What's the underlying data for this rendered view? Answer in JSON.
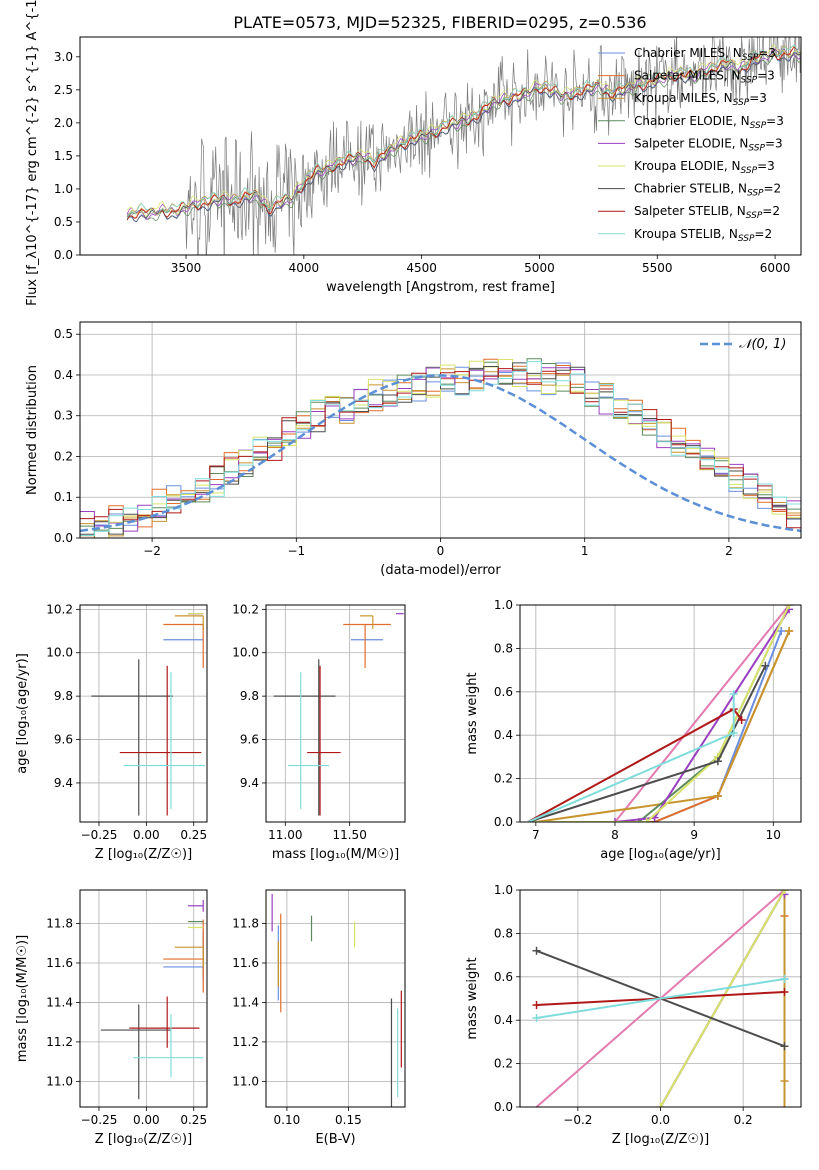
{
  "figure_title": "PLATE=0573, MJD=52325, FIBERID=0295, z=0.536",
  "colors": {
    "chabrier_miles": "#6a8fe0",
    "salpeter_miles": "#e06e2a",
    "kroupa_miles": "#c8942e",
    "chabrier_elodie": "#5c8a5c",
    "salpeter_elodie": "#9a3fc0",
    "kroupa_elodie": "#d8e36a",
    "chabrier_stelib": "#4d4d4d",
    "salpeter_stelib": "#b01818",
    "kroupa_stelib": "#7fdcdc",
    "data": "#7a7a7a",
    "gauss": "#5b8fd6",
    "pink": "#e37ab0",
    "grid": "#b0b0b0"
  },
  "chart_data": [
    {
      "id": "spectrum",
      "type": "line",
      "xlabel": "wavelength [Angstrom, rest frame]",
      "ylabel": "Flux [f_λ10^{-17} erg cm^{-2} s^{-1} A^{-1}]",
      "xlim": [
        3050,
        6110
      ],
      "ylim": [
        0,
        3.3
      ],
      "xticks": [
        3500,
        4000,
        4500,
        5000,
        5500,
        6000
      ],
      "yticks": [
        0.0,
        0.5,
        1.0,
        1.5,
        2.0,
        2.5,
        3.0
      ],
      "grid": false,
      "legend_position": "right",
      "legend": [
        {
          "text": "Chabrier MILES, N",
          "sub": "SSP",
          "tail": "=3",
          "color_key": "chabrier_miles"
        },
        {
          "text": "Salpeter MILES, N",
          "sub": "SSP",
          "tail": "=3",
          "color_key": "salpeter_miles"
        },
        {
          "text": "Kroupa MILES, N",
          "sub": "SSP",
          "tail": "=3",
          "color_key": "kroupa_miles"
        },
        {
          "text": "Chabrier ELODIE, N",
          "sub": "SSP",
          "tail": "=3",
          "color_key": "chabrier_elodie"
        },
        {
          "text": "Salpeter ELODIE, N",
          "sub": "SSP",
          "tail": "=3",
          "color_key": "salpeter_elodie"
        },
        {
          "text": "Kroupa ELODIE, N",
          "sub": "SSP",
          "tail": "=3",
          "color_key": "kroupa_elodie"
        },
        {
          "text": "Chabrier STELIB, N",
          "sub": "SSP",
          "tail": "=2",
          "color_key": "chabrier_stelib"
        },
        {
          "text": "Salpeter STELIB, N",
          "sub": "SSP",
          "tail": "=2",
          "color_key": "salpeter_stelib"
        },
        {
          "text": "Kroupa STELIB, N",
          "sub": "SSP",
          "tail": "=2",
          "color_key": "kroupa_stelib"
        }
      ],
      "model_x": [
        3250,
        3300,
        3350,
        3400,
        3450,
        3500,
        3550,
        3600,
        3650,
        3700,
        3750,
        3800,
        3850,
        3900,
        3950,
        4000,
        4050,
        4100,
        4150,
        4200,
        4250,
        4300,
        4350,
        4400,
        4450,
        4500,
        4550,
        4600,
        4650,
        4700,
        4750,
        4800,
        4850,
        4900,
        4950,
        5000,
        5050,
        5100,
        5150,
        5200,
        5250,
        5300,
        5350,
        5400,
        5450,
        5500,
        5550,
        5600,
        5650,
        5700,
        5750,
        5800,
        5850,
        5900,
        5950,
        6000
      ],
      "model_y": [
        0.6,
        0.65,
        0.62,
        0.68,
        0.65,
        0.72,
        0.78,
        0.8,
        0.85,
        0.82,
        0.88,
        0.9,
        0.7,
        0.8,
        0.85,
        1.1,
        1.25,
        1.3,
        1.4,
        1.45,
        1.5,
        1.4,
        1.55,
        1.65,
        1.75,
        1.8,
        1.85,
        1.95,
        2.0,
        2.05,
        2.15,
        2.3,
        2.35,
        2.4,
        2.45,
        2.55,
        2.5,
        2.4,
        2.45,
        2.5,
        2.55,
        2.45,
        2.5,
        2.55,
        2.6,
        2.65,
        2.7,
        2.75,
        2.7,
        2.8,
        2.85,
        2.9,
        2.8,
        2.95,
        3.0,
        3.05
      ],
      "data_note": "observed spectrum drawn as noisy line around model"
    },
    {
      "id": "residual_hist",
      "type": "line",
      "xlabel": "(data-model)/error",
      "ylabel": "Normed distribution",
      "xlim": [
        -2.5,
        2.5
      ],
      "ylim": [
        0,
        0.53
      ],
      "xticks": [
        -2,
        -1,
        0,
        1,
        2
      ],
      "yticks": [
        0.0,
        0.1,
        0.2,
        0.3,
        0.4,
        0.5
      ],
      "grid": true,
      "legend_position": "top-right",
      "legend": [
        {
          "text": "𝒩(0, 1)",
          "color_key": "gauss"
        }
      ],
      "bin_edges_step": 0.1,
      "bin_start": -2.5,
      "base_hist": [
        0.03,
        0.03,
        0.04,
        0.05,
        0.06,
        0.08,
        0.09,
        0.1,
        0.12,
        0.14,
        0.17,
        0.19,
        0.21,
        0.23,
        0.26,
        0.28,
        0.3,
        0.31,
        0.32,
        0.34,
        0.35,
        0.36,
        0.37,
        0.37,
        0.38,
        0.39,
        0.39,
        0.4,
        0.4,
        0.41,
        0.4,
        0.4,
        0.39,
        0.39,
        0.38,
        0.36,
        0.34,
        0.32,
        0.3,
        0.28,
        0.26,
        0.24,
        0.22,
        0.19,
        0.17,
        0.15,
        0.12,
        0.1,
        0.08,
        0.06
      ]
    }
  ],
  "panels": {
    "age_vs_Z": {
      "xlabel": "Z [log₁₀(Z/Z☉)]",
      "ylabel": "age  [log₁₀(age/yr)]",
      "xlim": [
        -0.35,
        0.32
      ],
      "ylim": [
        9.22,
        10.22
      ],
      "xticks": [
        -0.25,
        0.0,
        0.25
      ],
      "xtick_labels": [
        "−0.25",
        "0.00",
        "0.25"
      ],
      "yticks": [
        9.4,
        9.6,
        9.8,
        10.0,
        10.2
      ],
      "grid": true
    },
    "age_vs_mass": {
      "xlabel": "mass [log₁₀(M/M☉)]",
      "xlim": [
        10.85,
        11.93
      ],
      "ylim": [
        9.22,
        10.22
      ],
      "xticks": [
        11.0,
        11.5
      ],
      "yticks": [
        9.4,
        9.6,
        9.8,
        10.0,
        10.2
      ],
      "grid": true
    },
    "mw_vs_age": {
      "xlabel": "age  [log₁₀(age/yr)]",
      "ylabel": "mass weight",
      "xlim": [
        6.8,
        10.35
      ],
      "ylim": [
        0,
        1
      ],
      "xticks": [
        7,
        8,
        9,
        10
      ],
      "yticks": [
        0.0,
        0.2,
        0.4,
        0.6,
        0.8,
        1.0
      ],
      "grid": true
    },
    "mass_vs_Z": {
      "xlabel": "Z [log₁₀(Z/Z☉)]",
      "ylabel": "mass [log₁₀(M/M☉)]",
      "xlim": [
        -0.35,
        0.32
      ],
      "ylim": [
        10.87,
        11.97
      ],
      "xticks": [
        -0.25,
        0.0,
        0.25
      ],
      "xtick_labels": [
        "−0.25",
        "0.00",
        "0.25"
      ],
      "yticks": [
        11.0,
        11.2,
        11.4,
        11.6,
        11.8
      ],
      "grid": true
    },
    "mass_vs_ebv": {
      "xlabel": "E(B-V)",
      "xlim": [
        0.083,
        0.196
      ],
      "ylim": [
        10.87,
        11.97
      ],
      "xticks": [
        0.1,
        0.15
      ],
      "yticks": [
        11.0,
        11.2,
        11.4,
        11.6,
        11.8
      ],
      "grid": true
    },
    "mw_vs_Z": {
      "xlabel": "Z [log₁₀(Z/Z☉)]",
      "ylabel": "mass weight",
      "xlim": [
        -0.34,
        0.34
      ],
      "ylim": [
        0,
        1
      ],
      "xticks": [
        -0.2,
        0.0,
        0.2
      ],
      "xtick_labels": [
        "−0.2",
        "0.0",
        "0.2"
      ],
      "yticks": [
        0.0,
        0.2,
        0.4,
        0.6,
        0.8,
        1.0
      ],
      "grid": true
    }
  },
  "fits": [
    {
      "key": "chabrier_miles",
      "Z": [
        0.09,
        0.3
      ],
      "age": [
        10.06,
        10.06
      ],
      "ageErr": [
        0.0,
        0.0
      ],
      "mass": [
        11.58,
        11.58
      ],
      "massErr": [
        0.07,
        0.18
      ],
      "mass_mwZ": 11.58,
      "ebv": 0.093,
      "Zmax": 0.3,
      "age_mw": [
        [
          8.5,
          0.0
        ],
        [
          9.3,
          0.12
        ],
        [
          10.1,
          0.88
        ]
      ],
      "mwZ": [
        [
          0.3,
          0.59
        ]
      ]
    },
    {
      "key": "salpeter_miles",
      "Z": [
        0.09,
        0.3
      ],
      "age": [
        10.13,
        10.13
      ],
      "ageErr": [
        0.2,
        0.0
      ],
      "mass": [
        11.62,
        11.62
      ],
      "massErr": [
        0.17,
        0.2
      ],
      "mass_mwZ": 11.62,
      "ebv": 0.095,
      "Zmax": 0.3,
      "age_mw": [
        [
          8.5,
          0.0
        ],
        [
          9.3,
          0.12
        ],
        [
          10.2,
          0.88
        ]
      ],
      "mwZ": [
        [
          0.3,
          0.88
        ]
      ]
    },
    {
      "key": "kroupa_miles",
      "Z": [
        0.15,
        0.3
      ],
      "age": [
        10.17,
        10.17
      ],
      "ageErr": [
        0.06,
        0.0
      ],
      "mass": [
        11.68,
        11.68
      ],
      "massErr": [
        0.1,
        0.0
      ],
      "mass_mwZ": 11.68,
      "ebv": 0.093,
      "Zmax": 0.3,
      "age_mw": [
        [
          7.0,
          0.0
        ],
        [
          9.3,
          0.12
        ],
        [
          10.2,
          0.88
        ]
      ],
      "mwZ": [
        [
          0.3,
          0.12
        ]
      ]
    },
    {
      "key": "chabrier_elodie",
      "Z": [
        0.22,
        0.3
      ],
      "age": [
        10.18,
        10.18
      ],
      "ageErr": [
        0.0,
        0.0
      ],
      "mass": [
        11.81,
        11.81
      ],
      "massErr": [
        0.0,
        0.0
      ],
      "mass_mwZ": 11.81,
      "ebv": 0.12,
      "Zmax": 0.3,
      "age_mw": [
        [
          8.3,
          0.0
        ],
        [
          9.3,
          0.3
        ],
        [
          10.2,
          1.0
        ]
      ],
      "mwZ": [
        [
          0.3,
          1.0
        ]
      ]
    },
    {
      "key": "salpeter_elodie",
      "Z": [
        0.22,
        0.3
      ],
      "age": [
        10.18,
        10.18
      ],
      "ageErr": [
        0.0,
        0.0
      ],
      "mass": [
        11.89,
        11.89
      ],
      "massErr": [
        0.03,
        0.03
      ],
      "mass_mwZ": 11.89,
      "ebv": 0.088,
      "Zmax": 0.3,
      "age_mw": [
        [
          8.0,
          0.0
        ],
        [
          8.5,
          0.02
        ],
        [
          10.2,
          0.98
        ]
      ],
      "mwZ": [
        [
          0.3,
          0.98
        ]
      ]
    },
    {
      "key": "kroupa_elodie",
      "Z": [
        0.22,
        0.3
      ],
      "age": [
        10.18,
        10.18
      ],
      "ageErr": [
        0.0,
        0.0
      ],
      "mass": [
        11.78,
        11.78
      ],
      "massErr": [
        0.0,
        0.0
      ],
      "mass_mwZ": 11.78,
      "ebv": 0.155,
      "Zmax": 0.3,
      "age_mw": [
        [
          8.4,
          0.0
        ],
        [
          9.3,
          0.3
        ],
        [
          10.2,
          1.0
        ]
      ],
      "mwZ": [
        [
          0.0,
          0.0
        ],
        [
          0.3,
          1.0
        ]
      ]
    },
    {
      "key": "chabrier_stelib",
      "Z": [
        -0.04,
        -0.04
      ],
      "age": [
        9.8,
        9.8
      ],
      "ageErr": [
        0.55,
        0.17
      ],
      "mass": [
        11.26,
        11.26
      ],
      "massErr": [
        0.35,
        0.13
      ],
      "mass_mwZ": 11.26,
      "ebv": 0.185,
      "Zmax": 0.3,
      "age_mw": [
        [
          9.3,
          0.28
        ],
        [
          9.9,
          0.72
        ]
      ],
      "mwZ": [
        [
          -0.3,
          0.72
        ],
        [
          0.3,
          0.28
        ]
      ]
    },
    {
      "key": "salpeter_stelib",
      "Z": [
        0.11,
        0.11
      ],
      "age": [
        9.54,
        9.54
      ],
      "ageErr": [
        0.29,
        0.4
      ],
      "mass": [
        11.27,
        11.27
      ],
      "massErr": [
        0.1,
        0.16
      ],
      "mass_mwZ": 11.27,
      "ebv": 0.193,
      "Zmax": 0.3,
      "age_mw": [
        [
          9.5,
          0.52
        ],
        [
          9.6,
          0.47
        ]
      ],
      "mwZ": [
        [
          -0.3,
          0.47
        ],
        [
          0.3,
          0.53
        ]
      ]
    },
    {
      "key": "kroupa_stelib",
      "Z": [
        0.13,
        0.13
      ],
      "age": [
        9.48,
        9.48
      ],
      "ageErr": [
        0.2,
        0.43
      ],
      "mass": [
        11.12,
        11.12
      ],
      "massErr": [
        0.1,
        0.22
      ],
      "mass_mwZ": 11.12,
      "ebv": 0.19,
      "Zmax": 0.3,
      "age_mw": [
        [
          9.5,
          0.41
        ],
        [
          9.5,
          0.59
        ]
      ],
      "mwZ": [
        [
          -0.3,
          0.41
        ],
        [
          0.3,
          0.59
        ]
      ]
    }
  ]
}
